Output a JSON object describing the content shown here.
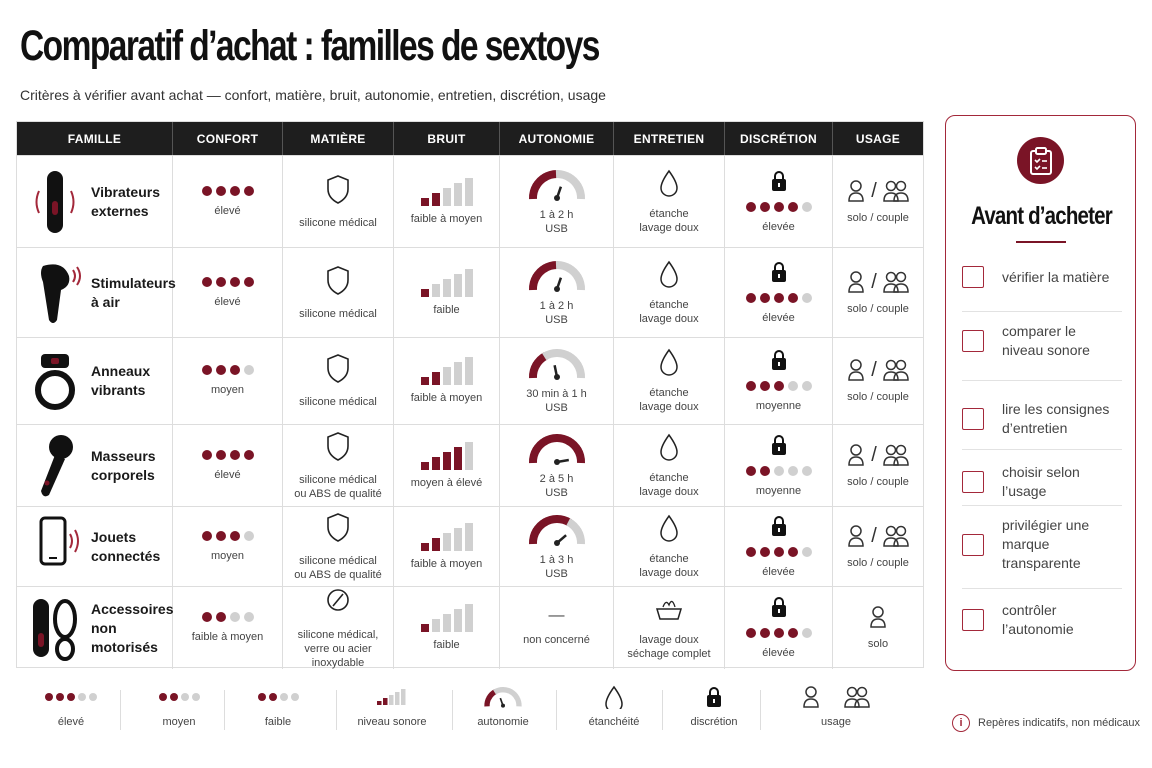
{
  "title": "Comparatif d’achat : familles de sextoys",
  "subtitle": "Critères à vérifier avant achat — confort, matière, bruit, autonomie, entretien, discrétion, usage",
  "colors": {
    "accent": "#7a1426",
    "inactive": "#d0d0d0",
    "header_bg": "#1e1e1e"
  },
  "columns": [
    "FAMILLE",
    "CONFORT",
    "MATIÈRE",
    "BRUIT",
    "AUTONOMIE",
    "ENTRETIEN",
    "DISCRÉTION",
    "USAGE"
  ],
  "rows": [
    {
      "icon": "vibrator-icon",
      "name1": "Vibrateurs",
      "name2": "externes",
      "comfort_dots": 4,
      "comfort": "élevé",
      "material_icon": "shield-icon",
      "material1": "silicone médical",
      "material2": "",
      "noise_bars": 2,
      "noise": "faible à moyen",
      "battery_level": 0.6,
      "battery1": "1 à 2 h",
      "battery2": "USB",
      "care_icon": "drop-icon",
      "care1": "étanche",
      "care2": "lavage doux",
      "discretion_dots": 4,
      "discretion": "élevée",
      "usage_icons": [
        "person-icon",
        "couple-icon"
      ],
      "usage": "solo / couple"
    },
    {
      "icon": "air-stimulator-icon",
      "name1": "Stimulateurs",
      "name2": "à air",
      "comfort_dots": 4,
      "comfort": "élevé",
      "material_icon": "shield-icon",
      "material1": "silicone médical",
      "material2": "",
      "noise_bars": 1,
      "noise": "faible",
      "battery_level": 0.6,
      "battery1": "1 à 2 h",
      "battery2": "USB",
      "care_icon": "drop-icon",
      "care1": "étanche",
      "care2": "lavage doux",
      "discretion_dots": 4,
      "discretion": "élevée",
      "usage_icons": [
        "person-icon",
        "couple-icon"
      ],
      "usage": "solo / couple"
    },
    {
      "icon": "ring-icon",
      "name1": "Anneaux",
      "name2": "vibrants",
      "comfort_dots": 3,
      "comfort": "moyen",
      "material_icon": "shield-icon",
      "material1": "silicone médical",
      "material2": "",
      "noise_bars": 2,
      "noise": "faible à moyen",
      "battery_level": 0.4,
      "battery1": "30 min à 1 h",
      "battery2": "USB",
      "care_icon": "drop-icon",
      "care1": "étanche",
      "care2": "lavage doux",
      "discretion_dots": 3,
      "discretion": "moyenne",
      "usage_icons": [
        "person-icon",
        "couple-icon"
      ],
      "usage": "solo / couple"
    },
    {
      "icon": "massager-icon",
      "name1": "Masseurs",
      "name2": "corporels",
      "comfort_dots": 4,
      "comfort": "élevé",
      "material_icon": "shield-icon",
      "material1": "silicone médical",
      "material2": "ou ABS de qualité",
      "noise_bars": 4,
      "noise": "moyen à élevé",
      "battery_level": 1.0,
      "battery1": "2 à 5 h",
      "battery2": "USB",
      "care_icon": "drop-icon",
      "care1": "étanche",
      "care2": "lavage doux",
      "discretion_dots": 2,
      "discretion": "moyenne",
      "usage_icons": [
        "person-icon",
        "couple-icon"
      ],
      "usage": "solo / couple"
    },
    {
      "icon": "phone-icon",
      "name1": "Jouets",
      "name2": "connectés",
      "comfort_dots": 3,
      "comfort": "moyen",
      "material_icon": "shield-icon",
      "material1": "silicone médical",
      "material2": "ou ABS de qualité",
      "noise_bars": 2,
      "noise": "faible à moyen",
      "battery_level": 0.8,
      "battery1": "1 à 3 h",
      "battery2": "USB",
      "care_icon": "drop-icon",
      "care1": "étanche",
      "care2": "lavage doux",
      "discretion_dots": 4,
      "discretion": "élevée",
      "usage_icons": [
        "person-icon",
        "couple-icon"
      ],
      "usage": "solo / couple"
    },
    {
      "icon": "accessory-icon",
      "name1": "Accessoires",
      "name2": "non motorisés",
      "comfort_dots": 2,
      "comfort": "faible à moyen",
      "material_icon": "circle-slash-icon",
      "material1": "silicone médical,",
      "material2": "verre ou acier",
      "material3": "inoxydable",
      "noise_bars": 1,
      "noise": "faible",
      "battery_level": null,
      "battery_dash": "—",
      "battery1": "non concerné",
      "battery2": "",
      "care_icon": "basin-icon",
      "care1": "lavage doux",
      "care2": "séchage complet",
      "discretion_dots": 4,
      "discretion": "élevée",
      "usage_icons": [
        "person-icon"
      ],
      "usage": "solo"
    }
  ],
  "panel": {
    "icon": "clipboard-icon",
    "title": "Avant d’acheter",
    "items": [
      {
        "l1": "vérifier la matière",
        "l2": "",
        "l3": ""
      },
      {
        "l1": "comparer le",
        "l2": "niveau sonore",
        "l3": ""
      },
      {
        "l1": "lire les consignes",
        "l2": "d’entretien",
        "l3": ""
      },
      {
        "l1": "choisir selon l’usage",
        "l2": "",
        "l3": ""
      },
      {
        "l1": "privilégier une",
        "l2": "marque",
        "l3": "transparente"
      },
      {
        "l1": "contrôler",
        "l2": "l’autonomie",
        "l3": ""
      }
    ]
  },
  "legend": {
    "items": [
      "élevé",
      "moyen",
      "faible",
      "niveau sonore",
      "autonomie",
      "étanchéité",
      "discrétion",
      "usage"
    ],
    "disclaimer_icon": "info-icon",
    "disclaimer": "Repères indicatifs, non médicaux"
  }
}
